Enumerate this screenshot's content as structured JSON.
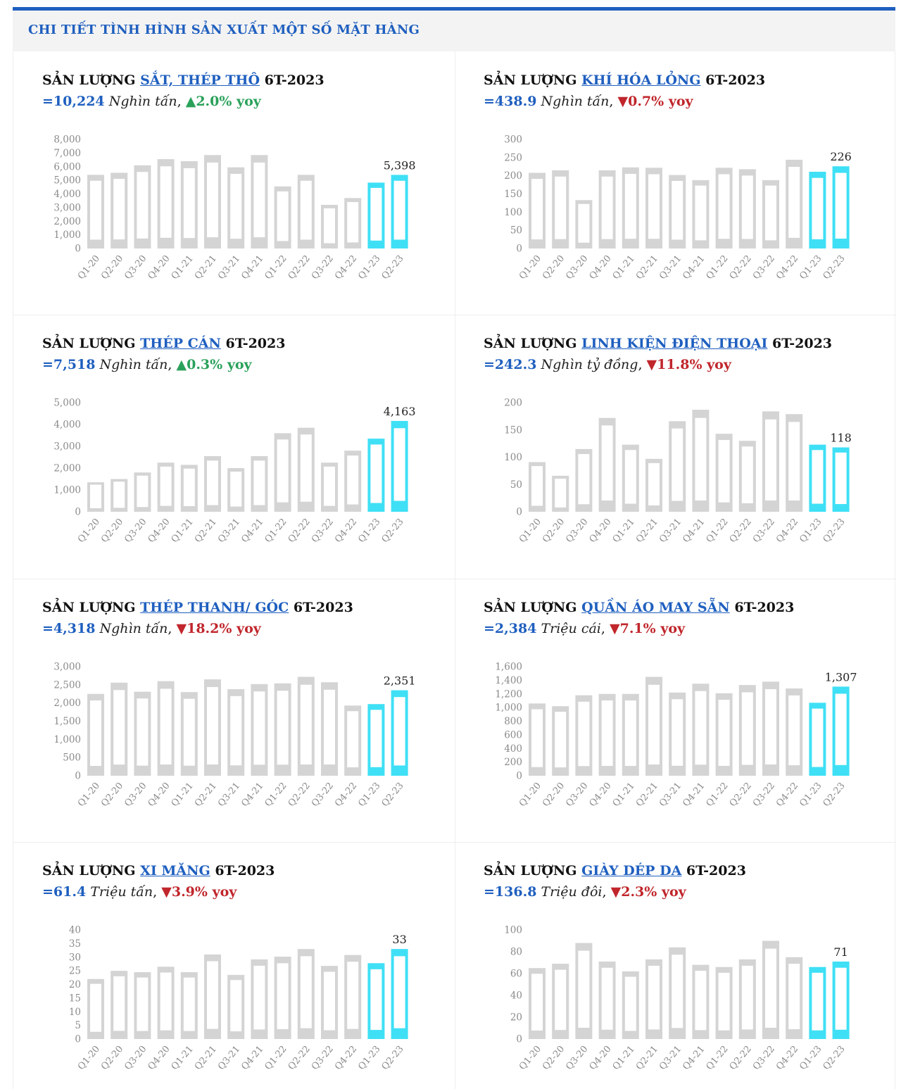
{
  "header": {
    "title": "CHI TIẾT TÌNH HÌNH SẢN XUẤT MỘT SỐ MẶT HÀNG"
  },
  "colors": {
    "accent": "#1f5fbf",
    "bar_gray": "#d4d4d4",
    "bar_highlight": "#3fe0f5",
    "up": "#2aa15a",
    "down": "#c0262c"
  },
  "panels": [
    {
      "prefix": "SẢN LƯỢNG ",
      "item": "SẮT, THÉP THÔ",
      "suffix": " 6T-2023",
      "value": "=10,224",
      "unit": "Nghìn tấn",
      "sep": ", ",
      "arrow": "▲",
      "change": "2.0% yoy",
      "direction": "up"
    },
    {
      "prefix": "SẢN LƯỢNG ",
      "item": "KHÍ HÓA LỎNG",
      "suffix": " 6T-2023",
      "value": "=438.9",
      "unit": "Nghìn tấn",
      "sep": ", ",
      "arrow": "▼",
      "change": "0.7% yoy",
      "direction": "down"
    },
    {
      "prefix": "SẢN LƯỢNG ",
      "item": "THÉP CÁN",
      "suffix": " 6T-2023",
      "value": "=7,518",
      "unit": "Nghìn tấn",
      "sep": ", ",
      "arrow": "▲",
      "change": "0.3% yoy",
      "direction": "up"
    },
    {
      "prefix": "SẢN LƯỢNG ",
      "item": "LINH KIỆN ĐIỆN THOẠI",
      "suffix": " 6T-2023",
      "value": "=242.3",
      "unit": "Nghìn tỷ đồng",
      "sep": ", ",
      "arrow": "▼",
      "change": "11.8% yoy",
      "direction": "down"
    },
    {
      "prefix": "SẢN LƯỢNG ",
      "item": "THÉP THANH/ GÓC",
      "suffix": " 6T-2023",
      "value": "=4,318",
      "unit": "Nghìn tấn",
      "sep": ", ",
      "arrow": "▼",
      "change": "18.2% yoy",
      "direction": "down"
    },
    {
      "prefix": "SẢN LƯỢNG ",
      "item": "QUẦN ÁO MAY SẴN",
      "suffix": " 6T-2023",
      "value": "=2,384",
      "unit": "Triệu cái",
      "sep": ", ",
      "arrow": "▼",
      "change": "7.1% yoy",
      "direction": "down"
    },
    {
      "prefix": "SẢN LƯỢNG ",
      "item": "XI MĂNG",
      "suffix": " 6T-2023",
      "value": "=61.4",
      "unit": "Triệu tấn",
      "sep": ", ",
      "arrow": "▼",
      "change": "3.9% yoy",
      "direction": "down"
    },
    {
      "prefix": "SẢN LƯỢNG ",
      "item": "GIÀY DÉP DA",
      "suffix": " 6T-2023",
      "value": "=136.8",
      "unit": "Triệu đôi",
      "sep": ", ",
      "arrow": "▼",
      "change": "2.3% yoy",
      "direction": "down"
    }
  ],
  "chart_data": [
    {
      "type": "bar",
      "categories": [
        "Q1-20",
        "Q2-20",
        "Q3-20",
        "Q4-20",
        "Q1-21",
        "Q2-21",
        "Q3-21",
        "Q4-21",
        "Q1-22",
        "Q2-22",
        "Q3-22",
        "Q4-22",
        "Q1-23",
        "Q2-23"
      ],
      "values": [
        5400,
        5550,
        6100,
        6550,
        6400,
        6850,
        5950,
        6850,
        4550,
        5400,
        3200,
        3700,
        4830,
        5398
      ],
      "yticks": [
        "0",
        "1,000",
        "2,000",
        "3,000",
        "4,000",
        "5,000",
        "6,000",
        "7,000",
        "8,000"
      ],
      "ylim": [
        0,
        8000
      ],
      "highlight": [
        12,
        13
      ],
      "data_labels": [
        {
          "index": 13,
          "text": "5,398"
        }
      ]
    },
    {
      "type": "bar",
      "categories": [
        "Q1-20",
        "Q2-20",
        "Q3-20",
        "Q4-20",
        "Q1-21",
        "Q2-21",
        "Q3-21",
        "Q4-21",
        "Q1-22",
        "Q2-22",
        "Q3-22",
        "Q4-22",
        "Q1-23",
        "Q2-23"
      ],
      "values": [
        208,
        215,
        133,
        215,
        223,
        222,
        202,
        188,
        222,
        218,
        188,
        244,
        211,
        226
      ],
      "yticks": [
        "0",
        "50",
        "100",
        "150",
        "200",
        "250",
        "300"
      ],
      "ylim": [
        0,
        300
      ],
      "highlight": [
        12,
        13
      ],
      "data_labels": [
        {
          "index": 13,
          "text": "226"
        }
      ]
    },
    {
      "type": "bar",
      "categories": [
        "Q1-20",
        "Q2-20",
        "Q3-20",
        "Q4-20",
        "Q1-21",
        "Q2-21",
        "Q3-21",
        "Q4-21",
        "Q1-22",
        "Q2-22",
        "Q3-22",
        "Q4-22",
        "Q1-23",
        "Q2-23"
      ],
      "values": [
        1350,
        1500,
        1800,
        2250,
        2150,
        2550,
        2000,
        2550,
        3600,
        3850,
        2250,
        2800,
        3350,
        4163
      ],
      "yticks": [
        "0",
        "1,000",
        "2,000",
        "3,000",
        "4,000",
        "5,000"
      ],
      "ylim": [
        0,
        5000
      ],
      "highlight": [
        12,
        13
      ],
      "data_labels": [
        {
          "index": 13,
          "text": "4,163"
        }
      ]
    },
    {
      "type": "bar",
      "categories": [
        "Q1-20",
        "Q2-20",
        "Q3-20",
        "Q4-20",
        "Q1-21",
        "Q2-21",
        "Q3-21",
        "Q4-21",
        "Q1-22",
        "Q2-22",
        "Q3-22",
        "Q4-22",
        "Q1-23",
        "Q2-23"
      ],
      "values": [
        91,
        66,
        115,
        172,
        123,
        97,
        166,
        187,
        143,
        130,
        184,
        179,
        123,
        118
      ],
      "yticks": [
        "0",
        "50",
        "100",
        "150",
        "200"
      ],
      "ylim": [
        0,
        200
      ],
      "highlight": [
        12,
        13
      ],
      "data_labels": [
        {
          "index": 13,
          "text": "118"
        }
      ]
    },
    {
      "type": "bar",
      "categories": [
        "Q1-20",
        "Q2-20",
        "Q3-20",
        "Q4-20",
        "Q1-21",
        "Q2-21",
        "Q3-21",
        "Q4-21",
        "Q1-22",
        "Q2-22",
        "Q3-22",
        "Q4-22",
        "Q1-23",
        "Q2-23"
      ],
      "values": [
        2250,
        2560,
        2310,
        2600,
        2300,
        2650,
        2380,
        2520,
        2540,
        2720,
        2570,
        1930,
        1970,
        2351
      ],
      "yticks": [
        "0",
        "500",
        "1,000",
        "1,500",
        "2,000",
        "2,500",
        "3,000"
      ],
      "ylim": [
        0,
        3000
      ],
      "highlight": [
        12,
        13
      ],
      "data_labels": [
        {
          "index": 13,
          "text": "2,351"
        }
      ]
    },
    {
      "type": "bar",
      "categories": [
        "Q1-20",
        "Q2-20",
        "Q3-20",
        "Q4-20",
        "Q1-21",
        "Q2-21",
        "Q3-21",
        "Q4-21",
        "Q1-22",
        "Q2-22",
        "Q3-22",
        "Q4-22",
        "Q1-23",
        "Q2-23"
      ],
      "values": [
        1060,
        1020,
        1180,
        1200,
        1200,
        1450,
        1220,
        1350,
        1210,
        1330,
        1380,
        1280,
        1070,
        1307
      ],
      "yticks": [
        "0",
        "200",
        "400",
        "600",
        "800",
        "1,000",
        "1,200",
        "1,400",
        "1,600"
      ],
      "ylim": [
        0,
        1600
      ],
      "highlight": [
        12,
        13
      ],
      "data_labels": [
        {
          "index": 13,
          "text": "1,307"
        }
      ]
    },
    {
      "type": "bar",
      "categories": [
        "Q1-20",
        "Q2-20",
        "Q3-20",
        "Q4-20",
        "Q1-21",
        "Q2-21",
        "Q3-21",
        "Q4-21",
        "Q1-22",
        "Q2-22",
        "Q3-22",
        "Q4-22",
        "Q1-23",
        "Q2-23"
      ],
      "values": [
        22,
        25,
        24.5,
        26.5,
        24.5,
        31,
        23.5,
        29.2,
        30.2,
        33,
        26.8,
        30.8,
        27.8,
        33
      ],
      "yticks": [
        "0",
        "5",
        "10",
        "15",
        "20",
        "25",
        "30",
        "35",
        "40"
      ],
      "ylim": [
        0,
        40
      ],
      "highlight": [
        12,
        13
      ],
      "data_labels": [
        {
          "index": 13,
          "text": "33"
        }
      ]
    },
    {
      "type": "bar",
      "categories": [
        "Q1-20",
        "Q2-20",
        "Q3-20",
        "Q4-20",
        "Q1-21",
        "Q2-21",
        "Q3-21",
        "Q4-21",
        "Q1-22",
        "Q2-22",
        "Q3-22",
        "Q4-22",
        "Q1-23",
        "Q2-23"
      ],
      "values": [
        65,
        69,
        88,
        71,
        62,
        73,
        84,
        68,
        66,
        73,
        90,
        75,
        66,
        71
      ],
      "yticks": [
        "0",
        "20",
        "40",
        "60",
        "80",
        "100"
      ],
      "ylim": [
        0,
        100
      ],
      "highlight": [
        12,
        13
      ],
      "data_labels": [
        {
          "index": 13,
          "text": "71"
        }
      ]
    }
  ]
}
